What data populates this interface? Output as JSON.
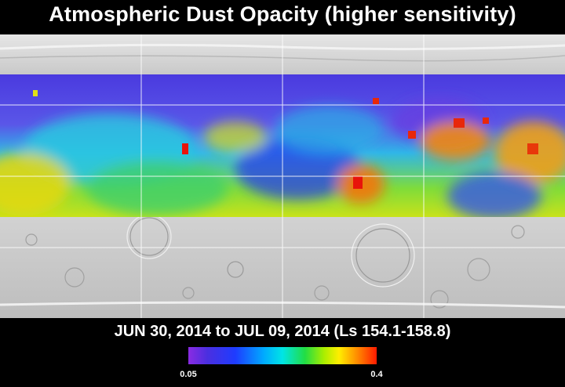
{
  "title": "Atmospheric Dust Opacity (higher sensitivity)",
  "date_range": "JUN 30, 2014 to JUL 09, 2014 (Ls 154.1-158.8)",
  "colorbar": {
    "min_label": "0.05",
    "max_label": "0.4",
    "colors": [
      "#8a2be2",
      "#1e3cff",
      "#00aaff",
      "#00e5e5",
      "#22dd44",
      "#aaee00",
      "#ffee00",
      "#ff8800",
      "#ff1a00"
    ]
  }
}
